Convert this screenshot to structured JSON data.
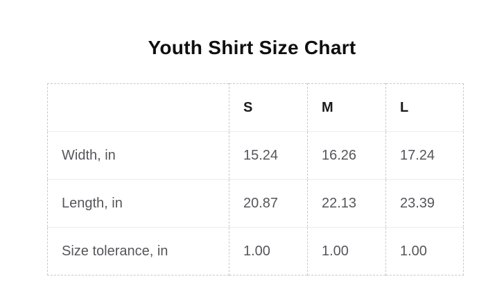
{
  "title": "Youth Shirt Size Chart",
  "table": {
    "header": [
      "",
      "S",
      "M",
      "L"
    ],
    "rows": [
      {
        "label": "Width, in",
        "values": [
          "15.24",
          "16.26",
          "17.24"
        ]
      },
      {
        "label": "Length, in",
        "values": [
          "20.87",
          "22.13",
          "23.39"
        ]
      },
      {
        "label": "Size tolerance, in",
        "values": [
          "1.00",
          "1.00",
          "1.00"
        ]
      }
    ]
  },
  "chart_data": {
    "type": "table",
    "title": "Youth Shirt Size Chart",
    "columns": [
      "S",
      "M",
      "L"
    ],
    "rows": [
      {
        "label": "Width, in",
        "values": [
          15.24,
          16.26,
          17.24
        ]
      },
      {
        "label": "Length, in",
        "values": [
          20.87,
          22.13,
          23.39
        ]
      },
      {
        "label": "Size tolerance, in",
        "values": [
          1.0,
          1.0,
          1.0
        ]
      }
    ],
    "units": "inches"
  },
  "colors": {
    "background": "#ffffff",
    "title_text": "#0f0f0f",
    "header_text": "#1a1a1a",
    "body_text": "#55565a",
    "border_dashed": "#c8c8c8",
    "row_divider": "#ececec"
  }
}
